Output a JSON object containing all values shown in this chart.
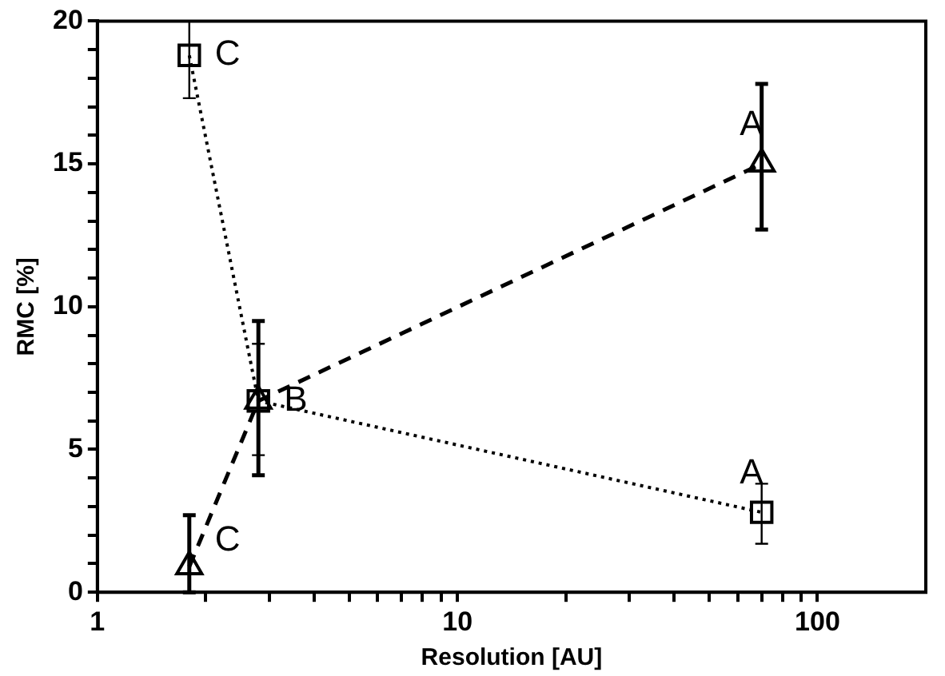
{
  "chart_data": {
    "type": "line",
    "xlabel": "Resolution [AU]",
    "ylabel": "RMC [%]",
    "log": "x",
    "grid": false,
    "legend": false,
    "xlim": [
      1,
      200
    ],
    "ylim": [
      0,
      20
    ],
    "xticks": [
      1,
      {
        "value": 2,
        "label": null
      },
      {
        "value": 3,
        "label": null
      },
      {
        "value": 4,
        "label": null
      },
      {
        "value": 5,
        "label": null
      },
      {
        "value": 6,
        "label": null
      },
      {
        "value": 7,
        "label": null
      },
      {
        "value": 8,
        "label": null
      },
      {
        "value": 9,
        "label": null
      },
      10,
      {
        "value": 20,
        "label": null
      },
      {
        "value": 30,
        "label": null
      },
      {
        "value": 40,
        "label": null
      },
      {
        "value": 50,
        "label": null
      },
      {
        "value": 60,
        "label": null
      },
      {
        "value": 70,
        "label": null
      },
      {
        "value": 80,
        "label": null
      },
      {
        "value": 90,
        "label": null
      },
      100
    ],
    "yticks": [
      0,
      {
        "value": 1,
        "label": null
      },
      {
        "value": 2,
        "label": null
      },
      {
        "value": 3,
        "label": null
      },
      {
        "value": 4,
        "label": null
      },
      5,
      {
        "value": 6,
        "label": null
      },
      {
        "value": 7,
        "label": null
      },
      {
        "value": 8,
        "label": null
      },
      {
        "value": 9,
        "label": null
      },
      10,
      {
        "value": 11,
        "label": null
      },
      {
        "value": 12,
        "label": null
      },
      {
        "value": 13,
        "label": null
      },
      {
        "value": 14,
        "label": null
      },
      15,
      {
        "value": 16,
        "label": null
      },
      {
        "value": 17,
        "label": null
      },
      {
        "value": 18,
        "label": null
      },
      {
        "value": 19,
        "label": null
      },
      20
    ],
    "series": [
      {
        "color": "#000000",
        "marker": "square",
        "line_style": "dotted",
        "x": [
          1.8,
          2.8,
          70
        ],
        "values": [
          18.8,
          6.7,
          2.8
        ],
        "errors": [
          [
            17.3,
            20
          ],
          [
            4.8,
            8.7
          ],
          [
            1.7,
            3.8
          ]
        ]
      },
      {
        "color": "#000000",
        "marker": "triangle",
        "line_style": "dashed",
        "x": [
          1.8,
          2.8,
          70
        ],
        "values": [
          0.9,
          6.7,
          15.0
        ],
        "errors": [
          [
            0,
            2.7
          ],
          [
            4.1,
            9.5
          ],
          [
            12.7,
            17.8
          ]
        ]
      }
    ],
    "annotations": [
      {
        "text": "C",
        "x": 1.8,
        "y": 18.8
      },
      {
        "text": "B",
        "x": 2.8,
        "y": 6.7
      },
      {
        "text": "A",
        "x": 70,
        "y": 2.8
      },
      {
        "text": "C",
        "x": 1.8,
        "y": 0.9
      },
      {
        "text": "A",
        "x": 70,
        "y": 15.0
      }
    ]
  }
}
